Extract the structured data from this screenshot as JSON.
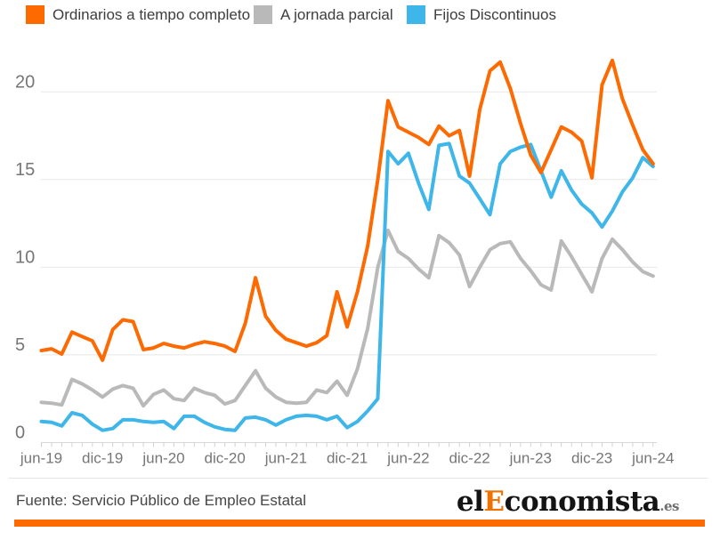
{
  "legend": {
    "items": [
      {
        "key": "ordinarios",
        "label": "Ordinarios a tiempo completo",
        "color": "#fd6a02"
      },
      {
        "key": "parcial",
        "label": "A jornada parcial",
        "color": "#b9b9b9"
      },
      {
        "key": "fijos",
        "label": "Fijos Discontinuos",
        "color": "#3eb6e9"
      }
    ]
  },
  "chart_data": {
    "type": "line",
    "title": "",
    "xlabel": "",
    "ylabel": "",
    "ylim": [
      0,
      22.4
    ],
    "yticks": [
      0,
      5,
      10,
      15,
      20
    ],
    "grid": true,
    "legend_position": "top",
    "x_label_every": 6,
    "x_tick_labels": [
      "jun-19",
      "dic-19",
      "jun-20",
      "dic-20",
      "jun-21",
      "dic-21",
      "jun-22",
      "dic-22",
      "jun-23",
      "dic-23",
      "jun-24"
    ],
    "categories": [
      "jun-19",
      "jul-19",
      "ago-19",
      "sep-19",
      "oct-19",
      "nov-19",
      "dic-19",
      "ene-20",
      "feb-20",
      "mar-20",
      "abr-20",
      "may-20",
      "jun-20",
      "jul-20",
      "ago-20",
      "sep-20",
      "oct-20",
      "nov-20",
      "dic-20",
      "ene-21",
      "feb-21",
      "mar-21",
      "abr-21",
      "may-21",
      "jun-21",
      "jul-21",
      "ago-21",
      "sep-21",
      "oct-21",
      "nov-21",
      "dic-21",
      "ene-22",
      "feb-22",
      "mar-22",
      "abr-22",
      "may-22",
      "jun-22",
      "jul-22",
      "ago-22",
      "sep-22",
      "oct-22",
      "nov-22",
      "dic-22",
      "ene-23",
      "feb-23",
      "mar-23",
      "abr-23",
      "may-23",
      "jun-23",
      "jul-23",
      "ago-23",
      "sep-23",
      "oct-23",
      "nov-23",
      "dic-23",
      "ene-24",
      "feb-24",
      "mar-24",
      "abr-24",
      "may-24",
      "jun-24"
    ],
    "series": [
      {
        "name": "Ordinarios a tiempo completo",
        "key": "ordinarios",
        "color": "#fd6a02",
        "z": 2,
        "values": [
          5.25,
          5.35,
          5.05,
          6.3,
          6.05,
          5.8,
          4.7,
          6.45,
          7.0,
          6.9,
          5.3,
          5.4,
          5.65,
          5.5,
          5.4,
          5.6,
          5.75,
          5.65,
          5.5,
          5.2,
          6.8,
          9.4,
          7.2,
          6.4,
          5.9,
          5.7,
          5.5,
          5.7,
          6.1,
          8.6,
          6.6,
          8.6,
          11.2,
          15.0,
          19.5,
          18.0,
          17.7,
          17.4,
          17.0,
          18.05,
          17.5,
          17.8,
          15.2,
          19.0,
          21.2,
          21.7,
          20.2,
          18.2,
          16.4,
          15.4,
          16.7,
          18.0,
          17.7,
          17.2,
          15.1,
          20.4,
          21.8,
          19.6,
          18.1,
          16.7,
          15.9
        ]
      },
      {
        "name": "A jornada parcial",
        "key": "parcial",
        "color": "#b9b9b9",
        "z": 0,
        "values": [
          2.3,
          2.25,
          2.15,
          3.6,
          3.35,
          3.0,
          2.6,
          3.05,
          3.25,
          3.1,
          2.1,
          2.75,
          3.0,
          2.5,
          2.4,
          3.1,
          2.85,
          2.7,
          2.2,
          2.4,
          3.25,
          4.1,
          3.1,
          2.6,
          2.3,
          2.25,
          2.3,
          3.0,
          2.85,
          3.5,
          2.7,
          4.2,
          6.5,
          10.0,
          12.1,
          10.9,
          10.5,
          9.9,
          9.4,
          11.8,
          11.4,
          10.7,
          8.9,
          10.0,
          11.0,
          11.35,
          11.45,
          10.5,
          9.8,
          9.0,
          8.7,
          11.5,
          10.6,
          9.6,
          8.6,
          10.5,
          11.6,
          11.0,
          10.3,
          9.75,
          9.5
        ]
      },
      {
        "name": "Fijos Discontinuos",
        "key": "fijos",
        "color": "#3eb6e9",
        "z": 1,
        "values": [
          1.2,
          1.15,
          0.95,
          1.7,
          1.55,
          1.05,
          0.7,
          0.8,
          1.3,
          1.3,
          1.2,
          1.15,
          1.2,
          0.8,
          1.5,
          1.5,
          1.15,
          0.9,
          0.75,
          0.7,
          1.4,
          1.45,
          1.3,
          1.0,
          1.3,
          1.5,
          1.55,
          1.5,
          1.3,
          1.5,
          0.85,
          1.2,
          1.8,
          2.5,
          16.6,
          15.9,
          16.5,
          14.8,
          13.3,
          16.95,
          17.05,
          15.2,
          14.8,
          13.9,
          13.0,
          15.9,
          16.6,
          16.85,
          17.0,
          15.5,
          14.0,
          15.5,
          14.4,
          13.6,
          13.1,
          12.3,
          13.2,
          14.3,
          15.1,
          16.25,
          15.75
        ]
      }
    ],
    "style": {
      "grid_color": "#e7e7e7",
      "axis_line_color": "#d8d8d8",
      "tick_color": "#d2d2d2",
      "axis_label_color": "#767676",
      "line_width": 4
    }
  },
  "footer": {
    "source": "Fuente: Servicio Público de Empleo Estatal",
    "logo": {
      "prefix": "el",
      "accent": "E",
      "rest": "conomista",
      "suffix": ".es"
    },
    "accent_bar_color": "#fd6a02"
  }
}
